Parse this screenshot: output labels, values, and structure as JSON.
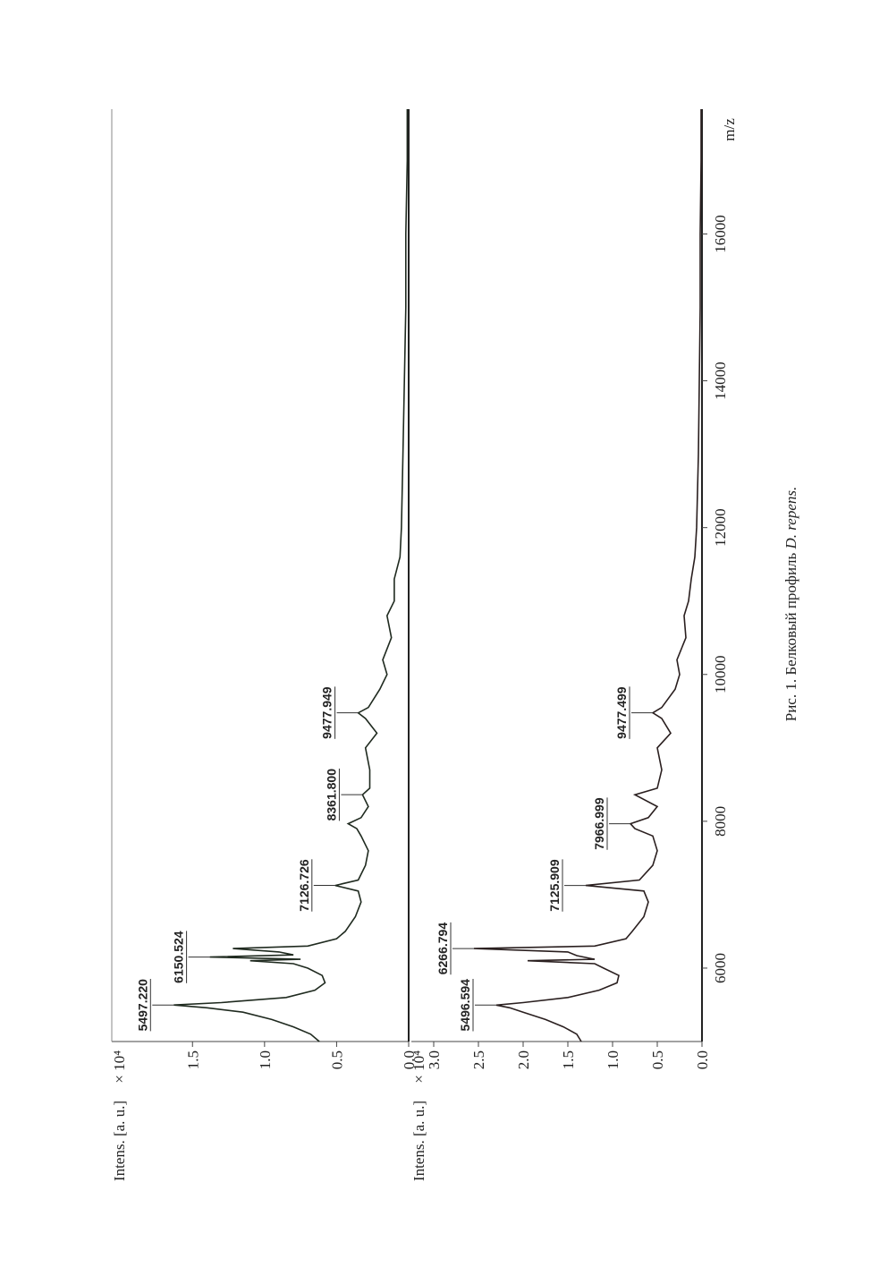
{
  "chart_data": [
    {
      "type": "line",
      "ylabel": "Intens. [a. u.]",
      "y_multiplier": "× 10⁴",
      "color": "#1f2a1f",
      "xlim": [
        5000,
        17700
      ],
      "ylim": [
        0,
        2.06
      ],
      "yticks": [
        {
          "value": 0,
          "label": "0.0"
        },
        0.5,
        {
          "value": 1,
          "label": "1.0"
        },
        1.5
      ],
      "x": [
        5000,
        5100,
        5200,
        5300,
        5400,
        5460,
        5497,
        5530,
        5600,
        5700,
        5800,
        5900,
        6000,
        6060,
        6100,
        6120,
        6150,
        6180,
        6220,
        6266,
        6300,
        6400,
        6500,
        6700,
        6900,
        7050,
        7126,
        7200,
        7400,
        7600,
        7800,
        7900,
        7966,
        8050,
        8200,
        8361,
        8450,
        8700,
        9000,
        9200,
        9400,
        9477,
        9550,
        9800,
        10000,
        10200,
        10500,
        10800,
        11000,
        11300,
        11600,
        12000,
        13000,
        14000,
        15000,
        16000,
        17000,
        17700
      ],
      "values": [
        0.62,
        0.68,
        0.8,
        0.95,
        1.15,
        1.4,
        1.63,
        1.3,
        0.85,
        0.65,
        0.58,
        0.6,
        0.7,
        0.8,
        1.1,
        0.75,
        1.38,
        0.8,
        0.9,
        1.22,
        0.7,
        0.5,
        0.44,
        0.37,
        0.33,
        0.35,
        0.51,
        0.35,
        0.3,
        0.28,
        0.33,
        0.36,
        0.42,
        0.33,
        0.28,
        0.32,
        0.27,
        0.27,
        0.3,
        0.22,
        0.3,
        0.35,
        0.28,
        0.2,
        0.15,
        0.18,
        0.12,
        0.15,
        0.1,
        0.1,
        0.06,
        0.05,
        0.04,
        0.03,
        0.02,
        0.02,
        0.01,
        0.01
      ],
      "annotations": [
        {
          "value": 5497.22,
          "label": "5497.220"
        },
        {
          "value": 6150.524,
          "label": "6150.524"
        },
        {
          "value": 7126.726,
          "label": "7126.726"
        },
        {
          "value": 8361.8,
          "label": "8361.800"
        },
        {
          "value": 9477.949,
          "label": "9477.949"
        }
      ]
    },
    {
      "type": "line",
      "ylabel": "Intens. [a. u.]",
      "y_multiplier": "× 10⁴",
      "xlabel": "m/z",
      "color": "#2a1f1f",
      "xlim": [
        5000,
        17700
      ],
      "ylim": [
        0,
        3.25
      ],
      "xticks": [
        6000,
        8000,
        10000,
        12000,
        14000,
        16000
      ],
      "yticks": [
        {
          "value": 0,
          "label": "0.0"
        },
        0.5,
        {
          "value": 1,
          "label": "1.0"
        },
        1.5,
        {
          "value": 2,
          "label": "2.0"
        },
        2.5,
        {
          "value": 3,
          "label": "3.0"
        }
      ],
      "x": [
        5000,
        5100,
        5200,
        5300,
        5400,
        5460,
        5496,
        5530,
        5600,
        5700,
        5800,
        5900,
        6000,
        6060,
        6100,
        6120,
        6170,
        6220,
        6266,
        6300,
        6400,
        6500,
        6700,
        6900,
        7050,
        7125,
        7200,
        7400,
        7600,
        7800,
        7900,
        7966,
        8050,
        8200,
        8361,
        8450,
        8700,
        9000,
        9200,
        9400,
        9477,
        9550,
        9800,
        10000,
        10200,
        10500,
        10800,
        11000,
        11300,
        11600,
        12000,
        13000,
        14000,
        15000,
        16000,
        17000,
        17700
      ],
      "values": [
        1.35,
        1.4,
        1.55,
        1.75,
        2.0,
        2.15,
        2.3,
        2.0,
        1.5,
        1.15,
        0.95,
        0.93,
        1.1,
        1.2,
        1.95,
        1.2,
        1.4,
        1.5,
        2.55,
        1.2,
        0.85,
        0.78,
        0.65,
        0.6,
        0.65,
        1.3,
        0.7,
        0.55,
        0.5,
        0.55,
        0.75,
        0.8,
        0.6,
        0.5,
        0.75,
        0.5,
        0.45,
        0.5,
        0.35,
        0.45,
        0.55,
        0.45,
        0.3,
        0.25,
        0.28,
        0.18,
        0.2,
        0.15,
        0.12,
        0.08,
        0.06,
        0.04,
        0.03,
        0.02,
        0.02,
        0.01,
        0.01
      ],
      "annotations": [
        {
          "value": 5496.594,
          "label": "5496.594"
        },
        {
          "value": 6266.794,
          "label": "6266.794"
        },
        {
          "value": 7125.909,
          "label": "7125.909"
        },
        {
          "value": 7966.999,
          "label": "7966.999"
        },
        {
          "value": 9477.499,
          "label": "9477.499"
        }
      ]
    }
  ],
  "caption": {
    "prefix": "Рис. 1. Белковый профиль ",
    "species": "D. repens."
  }
}
